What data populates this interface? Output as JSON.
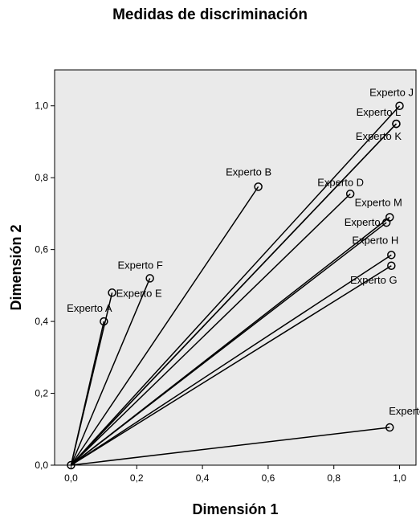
{
  "chart_data": {
    "type": "scatter",
    "title": "Medidas de discriminación",
    "xlabel": "Dimensión 1",
    "ylabel": "Dimensión 2",
    "xlim": [
      -0.05,
      1.05
    ],
    "ylim": [
      0.0,
      1.1
    ],
    "x_ticks": [
      "0,0",
      "0,2",
      "0,4",
      "0,6",
      "0,8",
      "1,0"
    ],
    "y_ticks": [
      "0,0",
      "0,2",
      "0,4",
      "0,6",
      "0,8",
      "1,0"
    ],
    "grid": false,
    "vectors_from_origin": true,
    "plot_background": "#eaeaea",
    "points": [
      {
        "label": "Experto A",
        "x": 0.1,
        "y": 0.4
      },
      {
        "label": "Experto E",
        "x": 0.125,
        "y": 0.48
      },
      {
        "label": "Experto F",
        "x": 0.24,
        "y": 0.52
      },
      {
        "label": "Experto B",
        "x": 0.57,
        "y": 0.775
      },
      {
        "label": "Experto D",
        "x": 0.85,
        "y": 0.755
      },
      {
        "label": "Experto J",
        "x": 1.0,
        "y": 1.0
      },
      {
        "label": "Experto L",
        "x": 0.99,
        "y": 0.95
      },
      {
        "label": "Experto K",
        "x": 0.99,
        "y": 0.95
      },
      {
        "label": "Experto M",
        "x": 0.97,
        "y": 0.69
      },
      {
        "label": "Experto",
        "x": 0.96,
        "y": 0.675
      },
      {
        "label": "Experto H",
        "x": 0.975,
        "y": 0.585
      },
      {
        "label": "Experto G",
        "x": 0.975,
        "y": 0.555
      },
      {
        "label": "Experto I",
        "x": 0.97,
        "y": 0.105
      }
    ]
  }
}
